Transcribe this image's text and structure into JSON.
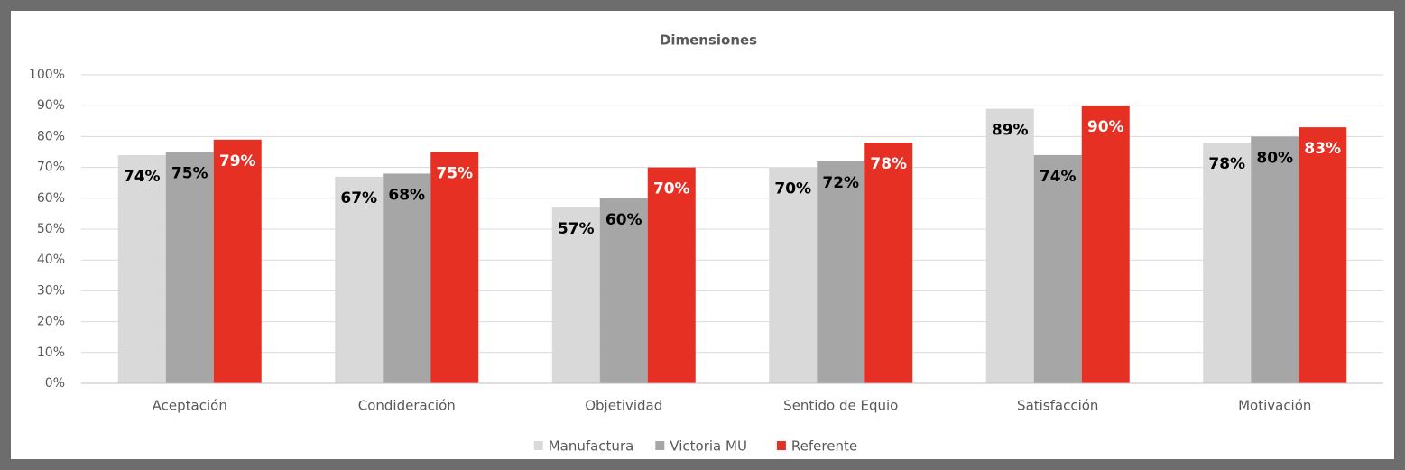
{
  "chart_data": {
    "type": "bar",
    "title": "Dimensiones",
    "categories": [
      "Aceptación",
      "Condideración",
      "Objetividad",
      "Sentido de Equio",
      "Satisfacción",
      "Motivación"
    ],
    "series": [
      {
        "name": "Manufactura",
        "color": "#d9d9d9",
        "values": [
          74,
          67,
          57,
          70,
          89,
          78
        ],
        "value_labels": [
          "74%",
          "67%",
          "57%",
          "70%",
          "89%",
          "78%"
        ]
      },
      {
        "name": "Victoria MU",
        "color": "#a6a6a6",
        "values": [
          75,
          68,
          60,
          72,
          74,
          80
        ],
        "value_labels": [
          "75%",
          "68%",
          "60%",
          "72%",
          "74%",
          "80%"
        ]
      },
      {
        "name": "Referente",
        "color": "#e63024",
        "values": [
          79,
          75,
          70,
          78,
          90,
          83
        ],
        "value_labels": [
          "79%",
          "75%",
          "70%",
          "78%",
          "90%",
          "83%"
        ]
      }
    ],
    "ylim": [
      0,
      100
    ],
    "yticks": [
      {
        "value": 0,
        "label": "0%"
      },
      {
        "value": 10,
        "label": "10%"
      },
      {
        "value": 20,
        "label": "20%"
      },
      {
        "value": 30,
        "label": "30%"
      },
      {
        "value": 40,
        "label": "40%"
      },
      {
        "value": 50,
        "label": "50%"
      },
      {
        "value": 60,
        "label": "60%"
      },
      {
        "value": 70,
        "label": "70%"
      },
      {
        "value": 80,
        "label": "80%"
      },
      {
        "value": 90,
        "label": "90%"
      },
      {
        "value": 100,
        "label": "100%"
      }
    ],
    "grid": true,
    "legend": "bottom"
  }
}
